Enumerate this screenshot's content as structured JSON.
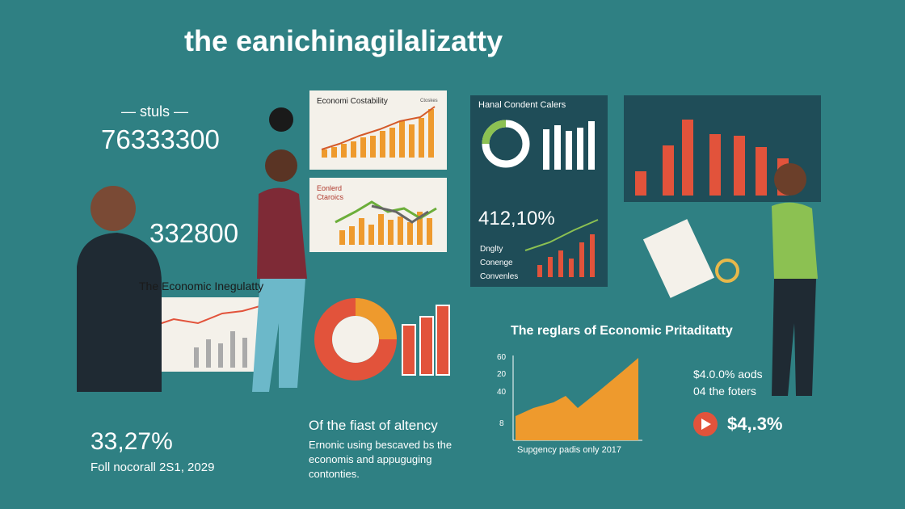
{
  "header": {
    "title": "the eanichinagilalizatty"
  },
  "left": {
    "kicker": "— stuls —",
    "big_number": "76333300",
    "second_number": "332800",
    "chart_title": "The Economic Inegulatty",
    "stat": "33,27%",
    "stat_note": "Foll nocorall 2S1, 2029"
  },
  "panels": {
    "top_chart_title": "Economi Costability",
    "top_chart_legend": "Ctoskes",
    "mid_chart_title": [
      "Eonlerd",
      "Ctaroics"
    ]
  },
  "dark_panel": {
    "title": "Hanal Condent Calers",
    "stat": "412,10%",
    "legend": [
      "Dnglty",
      "Conenge",
      "Convenles"
    ]
  },
  "center_text": {
    "heading": "Of the fiast of altency",
    "lines": [
      "Ernonic using bescaved bs the",
      "economis and appuguging",
      "contonties."
    ]
  },
  "right_chart": {
    "title": "The reglars of Economic Pritaditatty",
    "axis_labels": [
      "60",
      "20",
      "40",
      "8"
    ],
    "caption": "Supgency padis only 2017"
  },
  "right_stats": {
    "line1": "$4.0.0% aods",
    "line2": "04 the foters",
    "highlight": "$4,.3%"
  }
}
